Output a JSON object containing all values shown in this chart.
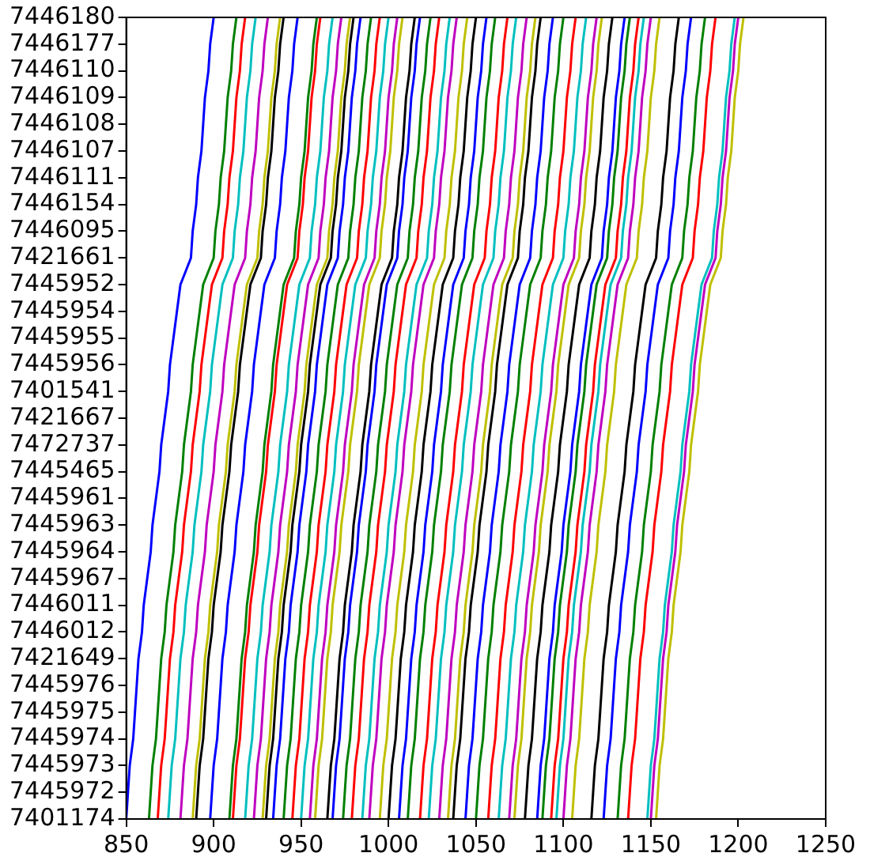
{
  "chart_data": {
    "type": "line",
    "orientation": "horizontal",
    "grid": false,
    "legend": false,
    "marker": "none",
    "categories": [
      "7446180",
      "7446177",
      "7446110",
      "7446109",
      "7446108",
      "7446107",
      "7446111",
      "7446154",
      "7446095",
      "7421661",
      "7445952",
      "7445954",
      "7445955",
      "7445956",
      "7401541",
      "7421667",
      "7472737",
      "7445465",
      "7445961",
      "7445963",
      "7445964",
      "7445967",
      "7446011",
      "7446012",
      "7421649",
      "7445976",
      "7445975",
      "7445974",
      "7445973",
      "7445972",
      "7401174"
    ],
    "xlim": [
      850,
      1250
    ],
    "xticks": [
      850,
      900,
      950,
      1000,
      1050,
      1100,
      1150,
      1200,
      1250
    ],
    "series": [
      {
        "color": "#0000ff",
        "values": [
          900,
          898,
          897,
          895,
          894,
          893,
          891,
          890,
          888,
          887,
          881,
          879,
          877,
          875,
          874,
          872,
          870,
          869,
          867,
          865,
          864,
          862,
          860,
          859,
          857,
          856,
          855,
          854,
          852,
          851,
          850
        ]
      },
      {
        "color": "#008000",
        "values": [
          913,
          911,
          910,
          908,
          907,
          906,
          904,
          903,
          901,
          900,
          894,
          892,
          890,
          888,
          887,
          885,
          883,
          882,
          880,
          878,
          877,
          875,
          873,
          872,
          870,
          869,
          868,
          867,
          865,
          864,
          863
        ]
      },
      {
        "color": "#ff0000",
        "values": [
          918,
          916,
          915,
          913,
          912,
          911,
          909,
          908,
          906,
          905,
          899,
          897,
          895,
          893,
          892,
          890,
          888,
          887,
          885,
          883,
          882,
          880,
          878,
          877,
          875,
          874,
          873,
          872,
          870,
          869,
          868
        ]
      },
      {
        "color": "#00bfbf",
        "values": [
          924,
          922,
          921,
          919,
          918,
          917,
          915,
          914,
          912,
          911,
          905,
          903,
          901,
          899,
          898,
          896,
          894,
          893,
          891,
          889,
          888,
          886,
          884,
          883,
          881,
          880,
          879,
          878,
          876,
          875,
          874
        ]
      },
      {
        "color": "#bf00bf",
        "values": [
          931,
          929,
          928,
          926,
          925,
          924,
          922,
          921,
          919,
          918,
          912,
          910,
          908,
          906,
          905,
          903,
          901,
          900,
          898,
          896,
          895,
          893,
          891,
          890,
          888,
          887,
          886,
          885,
          883,
          882,
          881
        ]
      },
      {
        "color": "#bfbf00",
        "values": [
          938,
          936,
          935,
          933,
          932,
          931,
          929,
          928,
          926,
          925,
          919,
          917,
          915,
          913,
          912,
          910,
          908,
          907,
          905,
          903,
          902,
          900,
          898,
          897,
          895,
          894,
          893,
          892,
          890,
          889,
          888
        ]
      },
      {
        "color": "#000000",
        "values": [
          940,
          938,
          937,
          935,
          934,
          933,
          931,
          930,
          928,
          927,
          921,
          919,
          917,
          915,
          914,
          912,
          910,
          909,
          907,
          905,
          904,
          902,
          900,
          899,
          897,
          896,
          895,
          894,
          892,
          891,
          890
        ]
      },
      {
        "color": "#0000ff",
        "values": [
          948,
          946,
          945,
          943,
          942,
          941,
          939,
          938,
          936,
          935,
          929,
          927,
          925,
          923,
          922,
          920,
          918,
          917,
          915,
          913,
          912,
          910,
          908,
          907,
          905,
          904,
          903,
          902,
          900,
          899,
          898
        ]
      },
      {
        "color": "#008000",
        "values": [
          959,
          957,
          956,
          954,
          953,
          952,
          950,
          949,
          947,
          946,
          940,
          938,
          936,
          934,
          933,
          931,
          929,
          928,
          926,
          924,
          923,
          921,
          919,
          918,
          916,
          915,
          914,
          913,
          911,
          910,
          909
        ]
      },
      {
        "color": "#ff0000",
        "values": [
          961,
          959,
          958,
          956,
          955,
          954,
          952,
          951,
          949,
          948,
          942,
          940,
          938,
          936,
          935,
          933,
          931,
          930,
          928,
          926,
          925,
          923,
          921,
          920,
          918,
          917,
          916,
          915,
          913,
          912,
          911
        ]
      },
      {
        "color": "#00bfbf",
        "values": [
          968,
          966,
          965,
          963,
          962,
          961,
          959,
          958,
          956,
          955,
          949,
          947,
          945,
          943,
          942,
          940,
          938,
          937,
          935,
          933,
          932,
          930,
          928,
          927,
          925,
          924,
          923,
          922,
          920,
          919,
          918
        ]
      },
      {
        "color": "#bf00bf",
        "values": [
          973,
          971,
          970,
          968,
          967,
          966,
          964,
          963,
          961,
          960,
          954,
          952,
          950,
          948,
          947,
          945,
          943,
          942,
          940,
          938,
          937,
          935,
          933,
          932,
          930,
          929,
          928,
          927,
          925,
          924,
          923
        ]
      },
      {
        "color": "#bfbf00",
        "values": [
          978,
          976,
          975,
          973,
          972,
          971,
          969,
          968,
          966,
          965,
          959,
          957,
          955,
          953,
          952,
          950,
          948,
          947,
          945,
          943,
          942,
          940,
          938,
          937,
          935,
          934,
          933,
          932,
          930,
          929,
          928
        ]
      },
      {
        "color": "#000000",
        "values": [
          980,
          978,
          977,
          975,
          974,
          973,
          971,
          970,
          968,
          967,
          961,
          959,
          957,
          955,
          954,
          952,
          950,
          949,
          947,
          945,
          944,
          942,
          940,
          939,
          937,
          936,
          935,
          934,
          932,
          931,
          930
        ]
      },
      {
        "color": "#0000ff",
        "values": [
          984,
          982,
          981,
          979,
          978,
          977,
          975,
          974,
          972,
          971,
          965,
          963,
          961,
          959,
          958,
          956,
          954,
          953,
          951,
          949,
          948,
          946,
          944,
          943,
          941,
          940,
          939,
          938,
          936,
          935,
          934
        ]
      },
      {
        "color": "#008000",
        "values": [
          990,
          988,
          987,
          985,
          984,
          983,
          981,
          980,
          978,
          977,
          971,
          969,
          967,
          965,
          964,
          962,
          960,
          959,
          957,
          955,
          954,
          952,
          950,
          949,
          947,
          946,
          945,
          944,
          942,
          941,
          940
        ]
      },
      {
        "color": "#ff0000",
        "values": [
          995,
          993,
          992,
          990,
          989,
          988,
          986,
          985,
          983,
          982,
          976,
          974,
          972,
          970,
          969,
          967,
          965,
          964,
          962,
          960,
          959,
          957,
          955,
          954,
          952,
          951,
          950,
          949,
          947,
          946,
          945
        ]
      },
      {
        "color": "#00bfbf",
        "values": [
          1000,
          998,
          997,
          995,
          994,
          993,
          991,
          990,
          988,
          987,
          981,
          979,
          977,
          975,
          974,
          972,
          970,
          969,
          967,
          965,
          964,
          962,
          960,
          959,
          957,
          956,
          955,
          954,
          952,
          951,
          950
        ]
      },
      {
        "color": "#bf00bf",
        "values": [
          1005,
          1003,
          1002,
          1000,
          999,
          998,
          996,
          995,
          993,
          992,
          986,
          984,
          982,
          980,
          979,
          977,
          975,
          974,
          972,
          970,
          969,
          967,
          965,
          964,
          962,
          961,
          960,
          959,
          957,
          956,
          955
        ]
      },
      {
        "color": "#bfbf00",
        "values": [
          1008,
          1006,
          1005,
          1003,
          1002,
          1001,
          999,
          998,
          996,
          995,
          989,
          987,
          985,
          983,
          982,
          980,
          978,
          977,
          975,
          973,
          972,
          970,
          968,
          967,
          965,
          964,
          963,
          962,
          960,
          959,
          958
        ]
      },
      {
        "color": "#000000",
        "values": [
          1015,
          1013,
          1012,
          1010,
          1009,
          1008,
          1006,
          1005,
          1003,
          1002,
          996,
          994,
          992,
          990,
          989,
          987,
          985,
          984,
          982,
          980,
          979,
          977,
          975,
          974,
          972,
          971,
          970,
          969,
          967,
          966,
          965
        ]
      },
      {
        "color": "#0000ff",
        "values": [
          1018,
          1016,
          1015,
          1013,
          1012,
          1011,
          1009,
          1008,
          1006,
          1005,
          999,
          997,
          995,
          993,
          992,
          990,
          988,
          987,
          985,
          983,
          982,
          980,
          978,
          977,
          975,
          974,
          973,
          972,
          970,
          969,
          968
        ]
      },
      {
        "color": "#008000",
        "values": [
          1024,
          1022,
          1021,
          1019,
          1018,
          1017,
          1015,
          1014,
          1012,
          1011,
          1005,
          1003,
          1001,
          999,
          998,
          996,
          994,
          993,
          991,
          989,
          988,
          986,
          984,
          983,
          981,
          980,
          979,
          978,
          976,
          975,
          974
        ]
      },
      {
        "color": "#ff0000",
        "values": [
          1029,
          1027,
          1026,
          1024,
          1023,
          1022,
          1020,
          1019,
          1017,
          1016,
          1010,
          1008,
          1006,
          1004,
          1003,
          1001,
          999,
          998,
          996,
          994,
          993,
          991,
          989,
          988,
          986,
          985,
          984,
          983,
          981,
          980,
          979
        ]
      },
      {
        "color": "#00bfbf",
        "values": [
          1035,
          1033,
          1032,
          1030,
          1029,
          1028,
          1026,
          1025,
          1023,
          1022,
          1016,
          1014,
          1012,
          1010,
          1009,
          1007,
          1005,
          1004,
          1002,
          1000,
          999,
          997,
          995,
          994,
          992,
          991,
          990,
          989,
          987,
          986,
          985
        ]
      },
      {
        "color": "#bf00bf",
        "values": [
          1039,
          1037,
          1036,
          1034,
          1033,
          1032,
          1030,
          1029,
          1027,
          1026,
          1020,
          1018,
          1016,
          1014,
          1013,
          1011,
          1009,
          1008,
          1006,
          1004,
          1003,
          1001,
          999,
          998,
          996,
          995,
          994,
          993,
          991,
          990,
          989
        ]
      },
      {
        "color": "#bfbf00",
        "values": [
          1045,
          1043,
          1042,
          1040,
          1039,
          1038,
          1036,
          1035,
          1033,
          1032,
          1026,
          1024,
          1022,
          1020,
          1019,
          1017,
          1015,
          1014,
          1012,
          1010,
          1009,
          1007,
          1005,
          1004,
          1002,
          1001,
          1000,
          999,
          997,
          996,
          995
        ]
      },
      {
        "color": "#000000",
        "values": [
          1050,
          1048,
          1047,
          1045,
          1044,
          1043,
          1041,
          1040,
          1038,
          1037,
          1031,
          1029,
          1027,
          1025,
          1024,
          1022,
          1020,
          1019,
          1017,
          1015,
          1014,
          1012,
          1010,
          1009,
          1007,
          1006,
          1005,
          1004,
          1002,
          1001,
          1000
        ]
      },
      {
        "color": "#0000ff",
        "values": [
          1056,
          1054,
          1053,
          1051,
          1050,
          1049,
          1047,
          1046,
          1044,
          1043,
          1037,
          1035,
          1033,
          1031,
          1030,
          1028,
          1026,
          1025,
          1023,
          1021,
          1020,
          1018,
          1016,
          1015,
          1013,
          1012,
          1011,
          1010,
          1008,
          1007,
          1006
        ]
      },
      {
        "color": "#008000",
        "values": [
          1061,
          1059,
          1058,
          1056,
          1055,
          1054,
          1052,
          1051,
          1049,
          1048,
          1042,
          1040,
          1038,
          1036,
          1035,
          1033,
          1031,
          1030,
          1028,
          1026,
          1025,
          1023,
          1021,
          1020,
          1018,
          1017,
          1016,
          1015,
          1013,
          1012,
          1011
        ]
      },
      {
        "color": "#ff0000",
        "values": [
          1068,
          1066,
          1065,
          1063,
          1062,
          1061,
          1059,
          1058,
          1056,
          1055,
          1049,
          1047,
          1045,
          1043,
          1042,
          1040,
          1038,
          1037,
          1035,
          1033,
          1032,
          1030,
          1028,
          1027,
          1025,
          1024,
          1023,
          1022,
          1020,
          1019,
          1018
        ]
      },
      {
        "color": "#00bfbf",
        "values": [
          1073,
          1071,
          1070,
          1068,
          1067,
          1066,
          1064,
          1063,
          1061,
          1060,
          1054,
          1052,
          1050,
          1048,
          1047,
          1045,
          1043,
          1042,
          1040,
          1038,
          1037,
          1035,
          1033,
          1032,
          1030,
          1029,
          1028,
          1027,
          1025,
          1024,
          1023
        ]
      },
      {
        "color": "#bf00bf",
        "values": [
          1079,
          1077,
          1076,
          1074,
          1073,
          1072,
          1070,
          1069,
          1067,
          1066,
          1060,
          1058,
          1056,
          1054,
          1053,
          1051,
          1049,
          1048,
          1046,
          1044,
          1043,
          1041,
          1039,
          1038,
          1036,
          1035,
          1034,
          1033,
          1031,
          1030,
          1029
        ]
      },
      {
        "color": "#bfbf00",
        "values": [
          1084,
          1082,
          1081,
          1079,
          1078,
          1077,
          1075,
          1074,
          1072,
          1071,
          1065,
          1063,
          1061,
          1059,
          1058,
          1056,
          1054,
          1053,
          1051,
          1049,
          1048,
          1046,
          1044,
          1043,
          1041,
          1040,
          1039,
          1038,
          1036,
          1035,
          1034
        ]
      },
      {
        "color": "#000000",
        "values": [
          1087,
          1085,
          1084,
          1082,
          1081,
          1080,
          1078,
          1077,
          1075,
          1074,
          1068,
          1066,
          1064,
          1062,
          1061,
          1059,
          1057,
          1056,
          1054,
          1052,
          1051,
          1049,
          1047,
          1046,
          1044,
          1043,
          1042,
          1041,
          1039,
          1038,
          1037
        ]
      },
      {
        "color": "#0000ff",
        "values": [
          1094,
          1092,
          1091,
          1089,
          1088,
          1087,
          1085,
          1084,
          1082,
          1081,
          1075,
          1073,
          1071,
          1069,
          1068,
          1066,
          1064,
          1063,
          1061,
          1059,
          1058,
          1056,
          1054,
          1053,
          1051,
          1050,
          1049,
          1048,
          1046,
          1045,
          1044
        ]
      },
      {
        "color": "#008000",
        "values": [
          1100,
          1098,
          1097,
          1095,
          1094,
          1093,
          1091,
          1090,
          1088,
          1087,
          1081,
          1079,
          1077,
          1075,
          1074,
          1072,
          1070,
          1069,
          1067,
          1065,
          1064,
          1062,
          1060,
          1059,
          1057,
          1056,
          1055,
          1054,
          1052,
          1051,
          1050
        ]
      },
      {
        "color": "#ff0000",
        "values": [
          1107,
          1105,
          1104,
          1102,
          1101,
          1100,
          1098,
          1097,
          1095,
          1094,
          1088,
          1086,
          1084,
          1082,
          1081,
          1079,
          1077,
          1076,
          1074,
          1072,
          1071,
          1069,
          1067,
          1066,
          1064,
          1063,
          1062,
          1061,
          1059,
          1058,
          1057
        ]
      },
      {
        "color": "#00bfbf",
        "values": [
          1113,
          1111,
          1110,
          1108,
          1107,
          1106,
          1104,
          1103,
          1101,
          1100,
          1094,
          1092,
          1090,
          1088,
          1087,
          1085,
          1083,
          1082,
          1080,
          1078,
          1077,
          1075,
          1073,
          1072,
          1070,
          1069,
          1068,
          1067,
          1065,
          1064,
          1063
        ]
      },
      {
        "color": "#bf00bf",
        "values": [
          1119,
          1117,
          1116,
          1114,
          1113,
          1112,
          1110,
          1109,
          1107,
          1106,
          1100,
          1098,
          1096,
          1094,
          1093,
          1091,
          1089,
          1088,
          1086,
          1084,
          1083,
          1081,
          1079,
          1078,
          1076,
          1075,
          1074,
          1073,
          1071,
          1070,
          1069
        ]
      },
      {
        "color": "#bfbf00",
        "values": [
          1122,
          1120,
          1119,
          1117,
          1116,
          1115,
          1113,
          1112,
          1110,
          1109,
          1103,
          1101,
          1099,
          1097,
          1096,
          1094,
          1092,
          1091,
          1089,
          1087,
          1086,
          1084,
          1082,
          1081,
          1079,
          1078,
          1077,
          1076,
          1074,
          1073,
          1072
        ]
      },
      {
        "color": "#000000",
        "values": [
          1128,
          1126,
          1125,
          1123,
          1122,
          1121,
          1119,
          1118,
          1116,
          1115,
          1109,
          1107,
          1105,
          1103,
          1102,
          1100,
          1098,
          1097,
          1095,
          1093,
          1092,
          1090,
          1088,
          1087,
          1085,
          1084,
          1083,
          1082,
          1080,
          1079,
          1078
        ]
      },
      {
        "color": "#0000ff",
        "values": [
          1135,
          1133,
          1132,
          1130,
          1129,
          1128,
          1126,
          1125,
          1123,
          1122,
          1116,
          1114,
          1112,
          1110,
          1109,
          1107,
          1105,
          1104,
          1102,
          1100,
          1099,
          1097,
          1095,
          1094,
          1092,
          1091,
          1090,
          1089,
          1087,
          1086,
          1085
        ]
      },
      {
        "color": "#008000",
        "values": [
          1138,
          1136,
          1135,
          1133,
          1132,
          1131,
          1129,
          1128,
          1126,
          1125,
          1119,
          1117,
          1115,
          1113,
          1112,
          1110,
          1108,
          1107,
          1105,
          1103,
          1102,
          1100,
          1098,
          1097,
          1095,
          1094,
          1093,
          1092,
          1090,
          1089,
          1088
        ]
      },
      {
        "color": "#ff0000",
        "values": [
          1143,
          1141,
          1140,
          1138,
          1137,
          1136,
          1134,
          1133,
          1131,
          1130,
          1124,
          1122,
          1120,
          1118,
          1117,
          1115,
          1113,
          1112,
          1110,
          1108,
          1107,
          1105,
          1103,
          1102,
          1100,
          1099,
          1098,
          1097,
          1095,
          1094,
          1093
        ]
      },
      {
        "color": "#00bfbf",
        "values": [
          1146,
          1144,
          1143,
          1141,
          1140,
          1139,
          1137,
          1136,
          1134,
          1133,
          1127,
          1125,
          1123,
          1121,
          1120,
          1118,
          1116,
          1115,
          1113,
          1111,
          1110,
          1108,
          1106,
          1105,
          1103,
          1102,
          1101,
          1100,
          1098,
          1097,
          1096
        ]
      },
      {
        "color": "#bf00bf",
        "values": [
          1150,
          1148,
          1147,
          1145,
          1144,
          1143,
          1141,
          1140,
          1138,
          1137,
          1131,
          1129,
          1127,
          1125,
          1124,
          1122,
          1120,
          1119,
          1117,
          1115,
          1114,
          1112,
          1110,
          1109,
          1107,
          1106,
          1105,
          1104,
          1102,
          1101,
          1100
        ]
      },
      {
        "color": "#bfbf00",
        "values": [
          1155,
          1153,
          1152,
          1150,
          1149,
          1148,
          1146,
          1145,
          1143,
          1142,
          1136,
          1134,
          1132,
          1130,
          1129,
          1127,
          1125,
          1124,
          1122,
          1120,
          1119,
          1117,
          1115,
          1114,
          1112,
          1111,
          1110,
          1109,
          1107,
          1106,
          1105
        ]
      },
      {
        "color": "#000000",
        "values": [
          1166,
          1164,
          1163,
          1161,
          1160,
          1159,
          1157,
          1156,
          1154,
          1153,
          1147,
          1145,
          1143,
          1141,
          1140,
          1138,
          1136,
          1135,
          1133,
          1131,
          1130,
          1128,
          1126,
          1125,
          1123,
          1122,
          1121,
          1120,
          1118,
          1117,
          1116
        ]
      },
      {
        "color": "#0000ff",
        "values": [
          1173,
          1171,
          1170,
          1168,
          1167,
          1166,
          1164,
          1163,
          1161,
          1160,
          1154,
          1152,
          1150,
          1148,
          1147,
          1145,
          1143,
          1142,
          1140,
          1138,
          1137,
          1135,
          1133,
          1132,
          1130,
          1129,
          1128,
          1127,
          1125,
          1124,
          1123
        ]
      },
      {
        "color": "#008000",
        "values": [
          1181,
          1179,
          1178,
          1176,
          1175,
          1174,
          1172,
          1171,
          1169,
          1168,
          1162,
          1160,
          1158,
          1156,
          1155,
          1153,
          1151,
          1150,
          1148,
          1146,
          1145,
          1143,
          1141,
          1140,
          1138,
          1137,
          1136,
          1135,
          1133,
          1132,
          1131
        ]
      },
      {
        "color": "#ff0000",
        "values": [
          1187,
          1185,
          1184,
          1182,
          1181,
          1180,
          1178,
          1177,
          1175,
          1174,
          1168,
          1166,
          1164,
          1162,
          1161,
          1159,
          1157,
          1156,
          1154,
          1152,
          1151,
          1149,
          1147,
          1146,
          1144,
          1143,
          1142,
          1141,
          1139,
          1138,
          1137
        ]
      },
      {
        "color": "#00bfbf",
        "values": [
          1198,
          1196,
          1195,
          1193,
          1192,
          1191,
          1189,
          1188,
          1186,
          1185,
          1179,
          1177,
          1175,
          1173,
          1172,
          1170,
          1168,
          1167,
          1165,
          1163,
          1162,
          1160,
          1158,
          1157,
          1155,
          1154,
          1153,
          1152,
          1150,
          1149,
          1148
        ]
      },
      {
        "color": "#bf00bf",
        "values": [
          1200,
          1198,
          1197,
          1195,
          1194,
          1193,
          1191,
          1190,
          1188,
          1187,
          1181,
          1179,
          1177,
          1175,
          1174,
          1172,
          1170,
          1169,
          1167,
          1165,
          1164,
          1162,
          1160,
          1159,
          1157,
          1156,
          1155,
          1154,
          1152,
          1151,
          1150
        ]
      },
      {
        "color": "#bfbf00",
        "values": [
          1203,
          1201,
          1200,
          1198,
          1197,
          1196,
          1194,
          1193,
          1191,
          1190,
          1184,
          1182,
          1180,
          1178,
          1177,
          1175,
          1173,
          1172,
          1170,
          1168,
          1167,
          1165,
          1163,
          1162,
          1160,
          1159,
          1158,
          1157,
          1155,
          1154,
          1153
        ]
      }
    ]
  }
}
